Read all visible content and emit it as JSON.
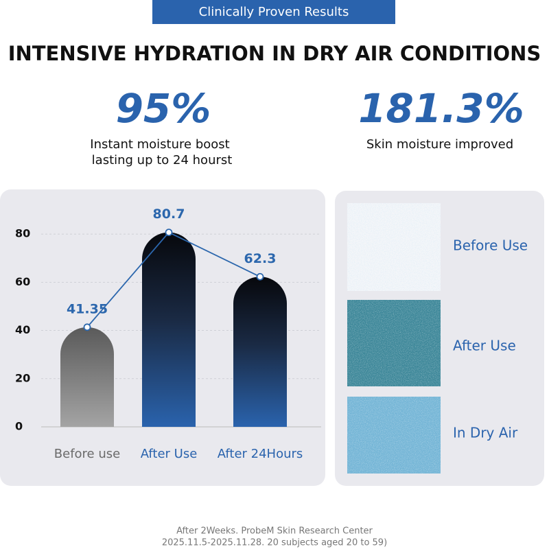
{
  "badge": "Clinically Proven Results",
  "headline": "INTENSIVE HYDRATION IN DRY AIR CONDITIONS",
  "stats": [
    {
      "value": "95%",
      "lines": [
        "Instant moisture boost",
        "lasting up to 24 hourst"
      ]
    },
    {
      "value": "181.3%",
      "lines": [
        "Skin moisture improved"
      ]
    }
  ],
  "chart_data": {
    "type": "bar",
    "categories": [
      "Before use",
      "After Use",
      "After 24Hours"
    ],
    "values": [
      41.35,
      80.7,
      62.3
    ],
    "colors": [
      "#6a6a6a",
      "#2a63ad",
      "#2a63ad"
    ],
    "line_color": "#2c67ad",
    "ylim": [
      0,
      90
    ],
    "yticks": [
      0,
      20,
      40,
      60,
      80
    ],
    "grid": true
  },
  "samples": [
    "Before Use",
    "After Use",
    "In Dry Air"
  ],
  "footnote": [
    "After 2Weeks. ProbeM Skin Research Center",
    "2025.11.5-2025.11.28.  20 subjects aged 20 to 59)"
  ]
}
